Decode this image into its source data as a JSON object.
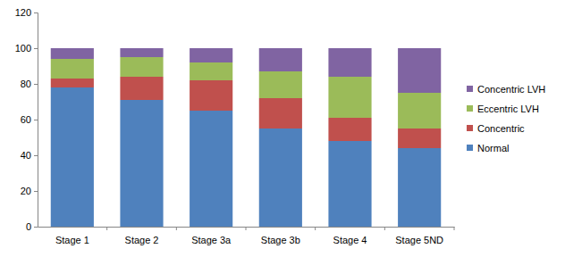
{
  "chart_data": {
    "type": "bar",
    "stacked": true,
    "grid": false,
    "legend": "right",
    "categories": [
      "Stage 1",
      "Stage 2",
      "Stage 3a",
      "Stage 3b",
      "Stage 4",
      "Stage 5ND"
    ],
    "series": [
      {
        "name": "Normal",
        "color": "#4f81bd",
        "values": [
          78,
          71,
          65,
          55,
          48,
          44
        ]
      },
      {
        "name": "Concentric",
        "color": "#c0504d",
        "values": [
          5,
          13,
          17,
          17,
          13,
          11
        ]
      },
      {
        "name": "Eccentric LVH",
        "color": "#9bbb59",
        "values": [
          11,
          11,
          10,
          15,
          23,
          20
        ]
      },
      {
        "name": "Concentric LVH",
        "color": "#8064a2",
        "values": [
          6,
          5,
          8,
          13,
          16,
          25
        ]
      }
    ],
    "ylim": [
      0,
      120
    ],
    "yticks": [
      0,
      20,
      40,
      60,
      80,
      100,
      120
    ]
  }
}
